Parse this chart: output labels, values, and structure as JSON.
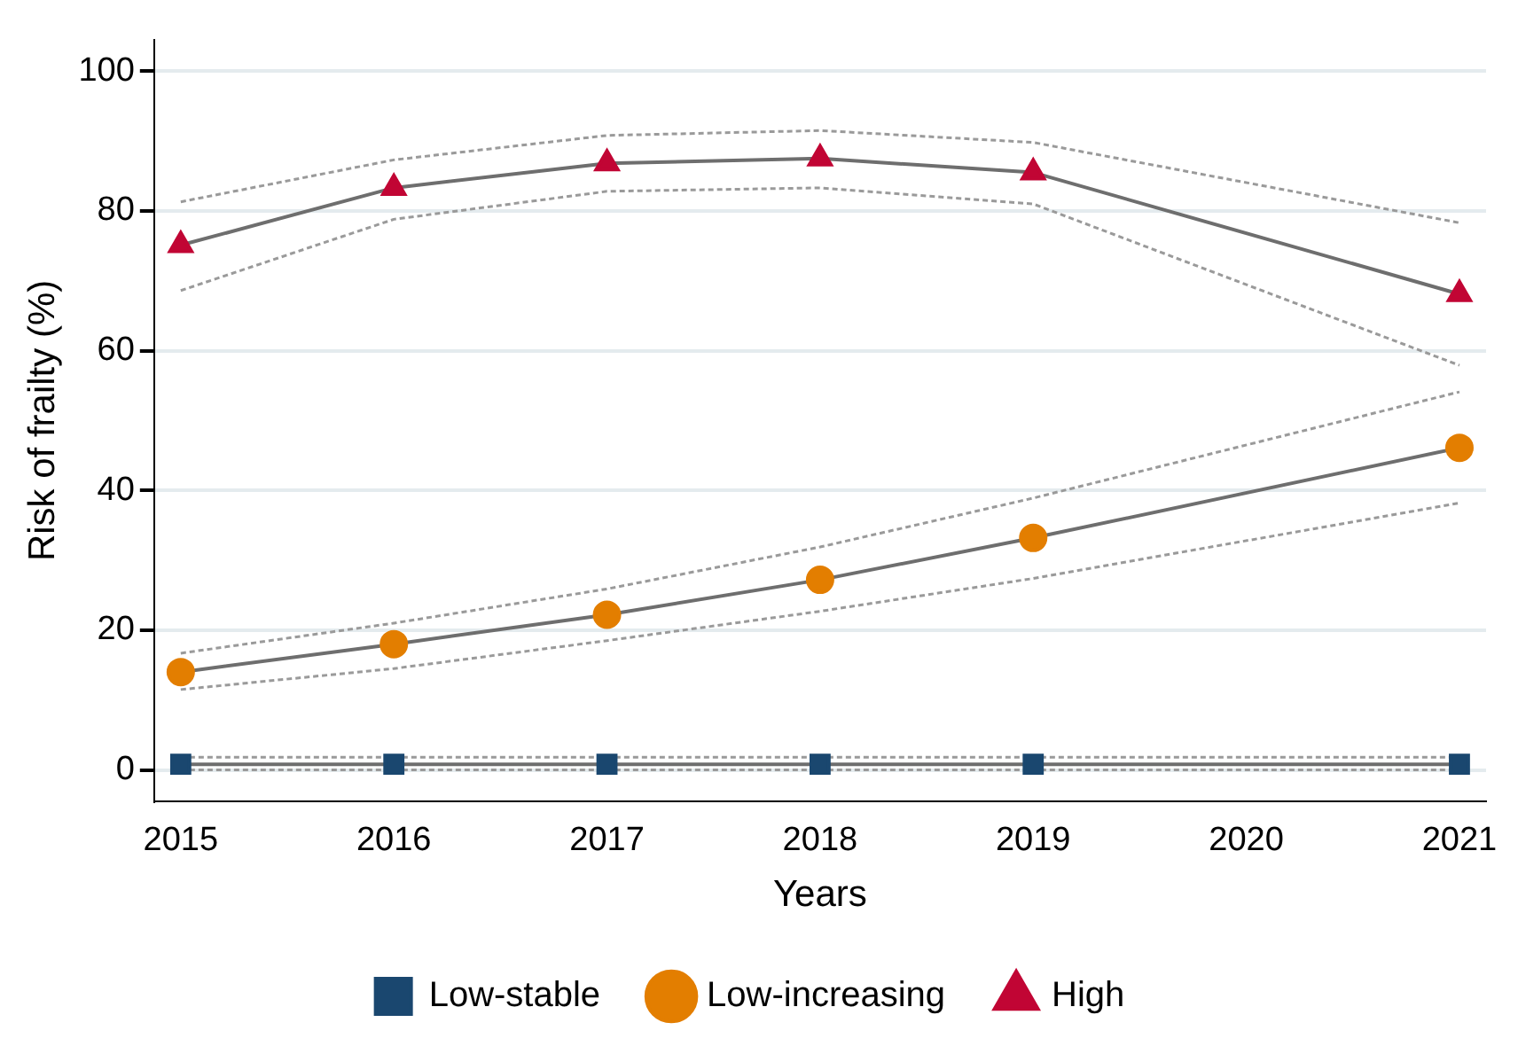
{
  "chart_data": {
    "type": "line",
    "xlabel": "Years",
    "ylabel": "Risk of frailty (%)",
    "x": [
      2015,
      2016,
      2017,
      2018,
      2019,
      2021
    ],
    "xlim": [
      2014.875,
      2021.125
    ],
    "xticks": [
      2015,
      2016,
      2017,
      2018,
      2019,
      2020,
      2021
    ],
    "ylim": [
      -4.5,
      104.5
    ],
    "yticks": [
      0,
      20,
      40,
      60,
      80,
      100
    ],
    "grid": "y",
    "legend": "bottom",
    "line_style": "solid",
    "series": [
      {
        "name": "Low-stable",
        "color": "#1a476f",
        "marker": "square",
        "values": [
          0.8,
          0.8,
          0.8,
          0.8,
          0.8,
          0.8
        ]
      },
      {
        "name": "Low-increasing",
        "color": "#e37e00",
        "marker": "circle",
        "values": [
          14,
          18,
          22.2,
          27.2,
          33.2,
          46.1
        ]
      },
      {
        "name": "High",
        "color": "#c10534",
        "marker": "triangle",
        "values": [
          75.1,
          83.3,
          86.8,
          87.5,
          85.5,
          68.1
        ]
      },
      {
        "color": "#9a9a9a",
        "marker": "none",
        "line_style": "dashed",
        "values": [
          0,
          0,
          0,
          0,
          0,
          0
        ]
      },
      {
        "color": "#9a9a9a",
        "marker": "none",
        "line_style": "dashed",
        "values": [
          1.8,
          1.8,
          1.8,
          1.8,
          1.8,
          1.8
        ]
      },
      {
        "color": "#9a9a9a",
        "marker": "none",
        "line_style": "dashed",
        "values": [
          11.5,
          14.5,
          18.5,
          22.7,
          27.4,
          38.2
        ]
      },
      {
        "color": "#9a9a9a",
        "marker": "none",
        "line_style": "dashed",
        "values": [
          16.7,
          21,
          25.9,
          31.9,
          38.9,
          54.1
        ]
      },
      {
        "color": "#9a9a9a",
        "marker": "none",
        "line_style": "dashed",
        "values": [
          68.6,
          78.8,
          82.8,
          83.3,
          81,
          57.9
        ]
      },
      {
        "color": "#9a9a9a",
        "marker": "none",
        "line_style": "dashed",
        "values": [
          81.3,
          87.3,
          90.8,
          91.5,
          89.8,
          78.3
        ]
      }
    ]
  }
}
